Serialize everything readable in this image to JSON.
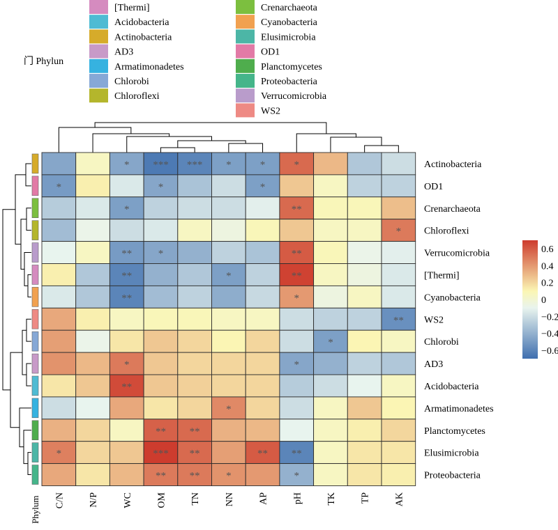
{
  "legend": {
    "title": "门 Phylun",
    "entries": [
      {
        "label": "[Thermi]",
        "color": "#d58bbf"
      },
      {
        "label": "Acidobacteria",
        "color": "#4fbbd3"
      },
      {
        "label": "Actinobacteria",
        "color": "#d6ab2a"
      },
      {
        "label": "AD3",
        "color": "#c89ac8"
      },
      {
        "label": "Armatimonadetes",
        "color": "#36b2e0"
      },
      {
        "label": "Chlorobi",
        "color": "#86a8d6"
      },
      {
        "label": "Chloroflexi",
        "color": "#b4b62c"
      },
      {
        "label": "Crenarchaeota",
        "color": "#7cbf3f"
      },
      {
        "label": "Cyanobacteria",
        "color": "#f1a150"
      },
      {
        "label": "Elusimicrobia",
        "color": "#4cb6a6"
      },
      {
        "label": "OD1",
        "color": "#e27aa6"
      },
      {
        "label": "Planctomycetes",
        "color": "#4fad4d"
      },
      {
        "label": "Proteobacteria",
        "color": "#45b58a"
      },
      {
        "label": "Verrucomicrobia",
        "color": "#b99ccb"
      },
      {
        "label": "WS2",
        "color": "#ee8a84"
      }
    ]
  },
  "annotation_label": "Phylum",
  "colorbar": {
    "ticks": [
      0.6,
      0.4,
      0.2,
      0,
      -0.2,
      -0.4,
      -0.6
    ],
    "tick_labels": [
      "0.6",
      "0.4",
      "0.2",
      "0",
      "−0.2",
      "−0.4",
      "−0.6"
    ],
    "colors": [
      "#3f6faf",
      "#e9f4ee",
      "#fbf6b4",
      "#cd3c2e"
    ]
  },
  "chart_data": {
    "type": "heatmap",
    "title": "",
    "columns": [
      "C/N",
      "N/P",
      "WC",
      "OM",
      "TN",
      "NN",
      "AP",
      "pH",
      "TK",
      "TP",
      "AK"
    ],
    "rows": [
      "Actinobacteria",
      "OD1",
      "Crenarchaeota",
      "Chloroflexi",
      "Verrucomicrobia",
      "[Thermi]",
      "Cyanobacteria",
      "WS2",
      "Chlorobi",
      "AD3",
      "Acidobacteria",
      "Armatimonadetes",
      "Planctomycetes",
      "Elusimicrobia",
      "Proteobacteria"
    ],
    "row_phylum_colors": [
      "#d6ab2a",
      "#e27aa6",
      "#7cbf3f",
      "#b4b62c",
      "#b99ccb",
      "#d58bbf",
      "#f1a150",
      "#ee8a84",
      "#86a8d6",
      "#c89ac8",
      "#4fbbd3",
      "#36b2e0",
      "#4fad4d",
      "#4cb6a6",
      "#45b58a"
    ],
    "values": [
      [
        -0.45,
        0.05,
        -0.45,
        -0.65,
        -0.6,
        -0.48,
        -0.48,
        0.55,
        0.3,
        -0.3,
        -0.2
      ],
      [
        -0.5,
        0.12,
        -0.15,
        -0.45,
        -0.32,
        -0.2,
        -0.48,
        0.25,
        0.05,
        -0.25,
        -0.25
      ],
      [
        -0.28,
        -0.15,
        -0.48,
        -0.25,
        -0.2,
        -0.2,
        -0.12,
        0.55,
        0.08,
        0.08,
        0.28
      ],
      [
        -0.35,
        -0.08,
        -0.2,
        -0.15,
        0.05,
        -0.05,
        0.08,
        0.25,
        0.05,
        0.05,
        0.5
      ],
      [
        -0.1,
        0.05,
        -0.5,
        -0.45,
        -0.4,
        -0.25,
        -0.32,
        0.6,
        0.08,
        -0.08,
        -0.12
      ],
      [
        0.12,
        -0.3,
        -0.6,
        -0.4,
        -0.3,
        -0.48,
        -0.25,
        0.68,
        0.05,
        -0.05,
        -0.15
      ],
      [
        -0.15,
        -0.3,
        -0.6,
        -0.35,
        -0.25,
        -0.42,
        -0.22,
        0.4,
        -0.05,
        0.05,
        -0.15
      ],
      [
        0.35,
        0.12,
        0.05,
        0.08,
        0.08,
        0.05,
        0.05,
        -0.2,
        -0.25,
        -0.25,
        -0.55
      ],
      [
        0.38,
        -0.08,
        0.15,
        0.25,
        0.2,
        0.1,
        0.2,
        -0.2,
        -0.48,
        0.1,
        0.05
      ],
      [
        0.42,
        0.3,
        0.5,
        0.25,
        0.2,
        0.2,
        0.2,
        -0.45,
        -0.4,
        -0.25,
        -0.3
      ],
      [
        0.15,
        0.25,
        0.65,
        0.25,
        0.22,
        0.2,
        0.2,
        -0.28,
        -0.2,
        -0.1,
        0.05
      ],
      [
        -0.2,
        -0.1,
        0.35,
        0.15,
        0.2,
        0.45,
        0.2,
        -0.2,
        0.05,
        0.25,
        0.1
      ],
      [
        0.32,
        0.2,
        0.05,
        0.58,
        0.55,
        0.32,
        0.3,
        -0.1,
        0.05,
        0.12,
        0.2
      ],
      [
        0.48,
        0.2,
        0.25,
        0.7,
        0.55,
        0.38,
        0.6,
        -0.6,
        0.05,
        0.15,
        0.15
      ],
      [
        0.35,
        0.15,
        0.3,
        0.5,
        0.5,
        0.42,
        0.4,
        -0.4,
        0.05,
        0.15,
        0.12
      ]
    ],
    "significance": [
      [
        "",
        "",
        "*",
        "***",
        "***",
        "*",
        "*",
        "*",
        "",
        "",
        ""
      ],
      [
        "*",
        "",
        "",
        "*",
        "",
        "",
        "*",
        "",
        "",
        "",
        ""
      ],
      [
        "",
        "",
        "*",
        "",
        "",
        "",
        "",
        "**",
        "",
        "",
        ""
      ],
      [
        "",
        "",
        "",
        "",
        "",
        "",
        "",
        "",
        "",
        "",
        "*"
      ],
      [
        "",
        "",
        "**",
        "*",
        "",
        "",
        "",
        "**",
        "",
        "",
        ""
      ],
      [
        "",
        "",
        "**",
        "",
        "",
        "*",
        "",
        "**",
        "",
        "",
        ""
      ],
      [
        "",
        "",
        "**",
        "",
        "",
        "",
        "",
        "*",
        "",
        "",
        ""
      ],
      [
        "",
        "",
        "",
        "",
        "",
        "",
        "",
        "",
        "",
        "",
        "**"
      ],
      [
        "",
        "",
        "",
        "",
        "",
        "",
        "",
        "",
        "*",
        "",
        ""
      ],
      [
        "",
        "",
        "*",
        "",
        "",
        "",
        "",
        "*",
        "",
        "",
        ""
      ],
      [
        "",
        "",
        "**",
        "",
        "",
        "",
        "",
        "",
        "",
        "",
        ""
      ],
      [
        "",
        "",
        "",
        "",
        "",
        "*",
        "",
        "",
        "",
        "",
        ""
      ],
      [
        "",
        "",
        "",
        "**",
        "**",
        "",
        "",
        "",
        "",
        "",
        ""
      ],
      [
        "*",
        "",
        "",
        "***",
        "**",
        "",
        "**",
        "**",
        "",
        "",
        ""
      ],
      [
        "",
        "",
        "",
        "**",
        "**",
        "*",
        "",
        "*",
        "",
        "",
        ""
      ]
    ],
    "color_range": [
      -0.7,
      0.7
    ],
    "legend": "right"
  }
}
